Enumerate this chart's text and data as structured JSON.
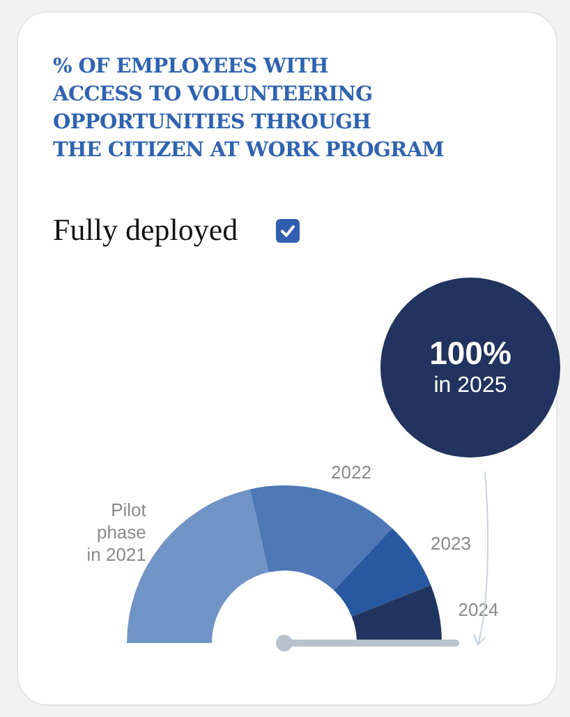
{
  "chart_data": {
    "type": "donut",
    "title": "% OF EMPLOYEES WITH\nACCESS TO VOLUNTEERING\nOPPORTUNITIES THROUGH\nTHE CITIZEN AT WORK PROGRAM",
    "categories": [
      "Pilot\nphase\nin 2021",
      "2022",
      "2023",
      "2024"
    ],
    "values": [
      43,
      31,
      14,
      12
    ],
    "colors": [
      "#7094c6",
      "#4e78b6",
      "#2858a0",
      "#1f3560"
    ],
    "needle": "2024",
    "annotations": [
      "Fully deployed",
      "100%",
      "in 2025"
    ]
  }
}
